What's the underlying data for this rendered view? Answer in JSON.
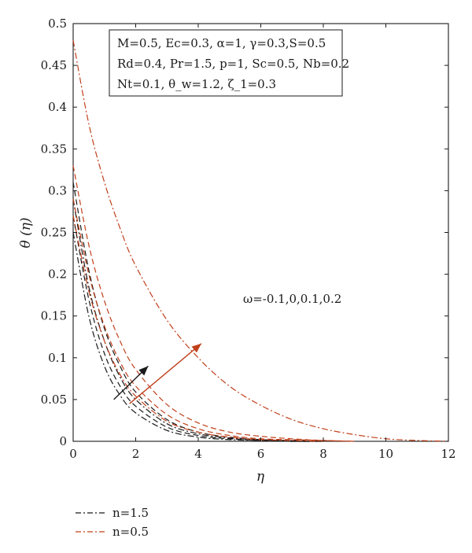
{
  "chart_data": {
    "type": "line",
    "xlabel": "η",
    "ylabel": "θ (η)",
    "xlim": [
      0,
      12
    ],
    "ylim": [
      0,
      0.5
    ],
    "xticks": [
      0,
      2,
      4,
      6,
      8,
      10,
      12
    ],
    "yticks": [
      0,
      0.05,
      0.1,
      0.15,
      0.2,
      0.25,
      0.3,
      0.35,
      0.4,
      0.45,
      0.5
    ],
    "ytick_labels": [
      "0",
      "0.05",
      "0.1",
      "0.15",
      "0.2",
      "0.25",
      "0.3",
      "0.35",
      "0.4",
      "0.45",
      "0.5"
    ],
    "xtick_labels": [
      "0",
      "2",
      "4",
      "6",
      "8",
      "10",
      "12"
    ],
    "grid": false,
    "parameter_box": [
      "M=0.5, Ec=0.3, α=1, γ=0.3,S=0.5",
      "Rd=0.4, Pr=1.5, p=1, Sc=0.5, Nb=0.2",
      "Nt=0.1, θ_w=1.2, ζ_1=0.3"
    ],
    "annotation": "ω=-0.1,0,0.1,0.2",
    "legend": {
      "placement": "bottom-left",
      "entries": [
        {
          "label": "n=1.5",
          "color": "#1a1a1a",
          "dash": "dash-dot"
        },
        {
          "label": "n=0.5",
          "color": "#c0401b",
          "dash": "dash-dot"
        }
      ]
    },
    "colors": {
      "black": "#1a1a1a",
      "orange": "#c0401b"
    },
    "series": [
      {
        "group": "n=1.5",
        "color": "#1a1a1a",
        "style": "dash-dot",
        "x": [
          0,
          0.5,
          1,
          1.5,
          2,
          3,
          4,
          5,
          6,
          7,
          8
        ],
        "y": [
          0.25,
          0.15,
          0.09,
          0.055,
          0.034,
          0.013,
          0.005,
          0.002,
          0.001,
          0,
          0
        ]
      },
      {
        "group": "n=1.5",
        "color": "#1a1a1a",
        "style": "dashed",
        "x": [
          0,
          0.5,
          1,
          1.5,
          2,
          3,
          4,
          5,
          6,
          7,
          8
        ],
        "y": [
          0.27,
          0.17,
          0.105,
          0.066,
          0.042,
          0.017,
          0.007,
          0.003,
          0.001,
          0,
          0
        ]
      },
      {
        "group": "n=1.5",
        "color": "#1a1a1a",
        "style": "dash-dot",
        "x": [
          0,
          0.5,
          1,
          1.5,
          2,
          3,
          4,
          5,
          6,
          7,
          8
        ],
        "y": [
          0.29,
          0.185,
          0.12,
          0.077,
          0.05,
          0.021,
          0.009,
          0.004,
          0.002,
          0,
          0
        ]
      },
      {
        "group": "n=1.5",
        "color": "#1a1a1a",
        "style": "dashed",
        "x": [
          0,
          0.5,
          1,
          1.5,
          2,
          3,
          4,
          5,
          6,
          7,
          8
        ],
        "y": [
          0.31,
          0.205,
          0.135,
          0.09,
          0.059,
          0.026,
          0.011,
          0.005,
          0.002,
          0.001,
          0
        ]
      },
      {
        "group": "n=0.5",
        "color": "#c0401b",
        "style": "dash-dot",
        "x": [
          0,
          0.5,
          1,
          1.5,
          2,
          3,
          4,
          5,
          6,
          7,
          8
        ],
        "y": [
          0.27,
          0.18,
          0.12,
          0.08,
          0.054,
          0.024,
          0.011,
          0.005,
          0.002,
          0.001,
          0
        ]
      },
      {
        "group": "n=0.5",
        "color": "#c0401b",
        "style": "dashed",
        "x": [
          0,
          0.5,
          1,
          1.5,
          2,
          3,
          4,
          5,
          6,
          7,
          8,
          9
        ],
        "y": [
          0.29,
          0.2,
          0.138,
          0.095,
          0.066,
          0.032,
          0.015,
          0.007,
          0.003,
          0.002,
          0.001,
          0
        ]
      },
      {
        "group": "n=0.5",
        "color": "#c0401b",
        "style": "dashed",
        "x": [
          0,
          0.5,
          1,
          1.5,
          2,
          3,
          4,
          5,
          6,
          7,
          8,
          9
        ],
        "y": [
          0.33,
          0.235,
          0.168,
          0.12,
          0.086,
          0.044,
          0.022,
          0.011,
          0.006,
          0.003,
          0.001,
          0
        ]
      },
      {
        "group": "n=0.5",
        "color": "#c0401b",
        "style": "dash-dot",
        "x": [
          0,
          0.5,
          1,
          1.5,
          2,
          3,
          4,
          5,
          6,
          7,
          8,
          9,
          10,
          11,
          12
        ],
        "y": [
          0.48,
          0.38,
          0.31,
          0.255,
          0.21,
          0.145,
          0.1,
          0.066,
          0.043,
          0.026,
          0.015,
          0.008,
          0.003,
          0.001,
          0
        ]
      }
    ],
    "arrows": [
      {
        "color": "#1a1a1a",
        "from": [
          1.3,
          0.05
        ],
        "to": [
          2.4,
          0.09
        ]
      },
      {
        "color": "#c0401b",
        "from": [
          1.8,
          0.045
        ],
        "to": [
          4.1,
          0.117
        ]
      }
    ]
  }
}
